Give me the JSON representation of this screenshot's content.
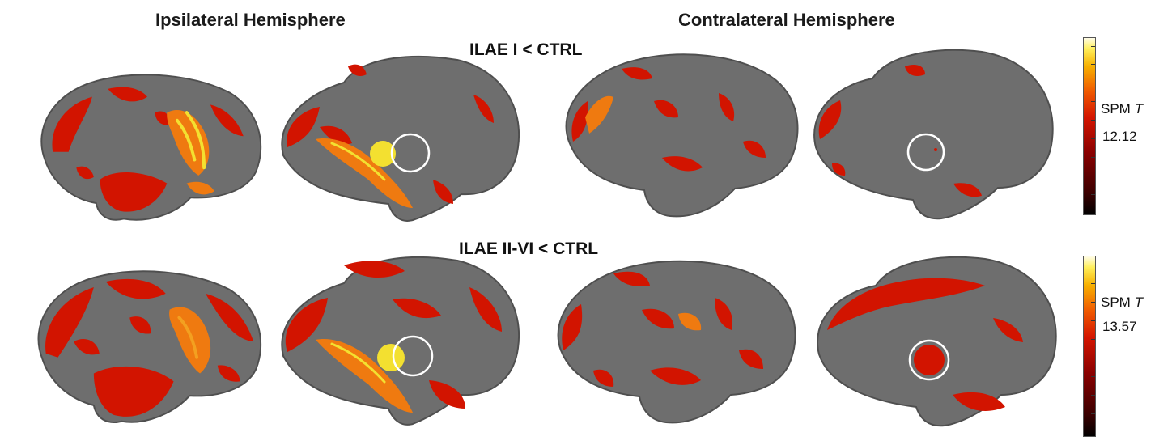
{
  "headings": {
    "ipsilateral": "Ipsilateral Hemisphere",
    "contralateral": "Contralateral Hemisphere"
  },
  "rows": [
    {
      "label": "ILAE I < CTRL",
      "colorbar": {
        "label_prefix": "SPM",
        "label_var": "T",
        "max_value": "12.12"
      }
    },
    {
      "label": "ILAE II-VI < CTRL",
      "colorbar": {
        "label_prefix": "SPM",
        "label_var": "T",
        "max_value": "13.57"
      }
    }
  ],
  "colors": {
    "cortex": "#6e6e6e",
    "cortex_dark": "#4f4f4f",
    "activation_red": "#d21400",
    "activation_orange": "#ef7a10",
    "activation_yellow": "#f3e030",
    "roi_circle": "#ffffff"
  },
  "views": [
    "lateral",
    "medial",
    "lateral",
    "medial"
  ]
}
